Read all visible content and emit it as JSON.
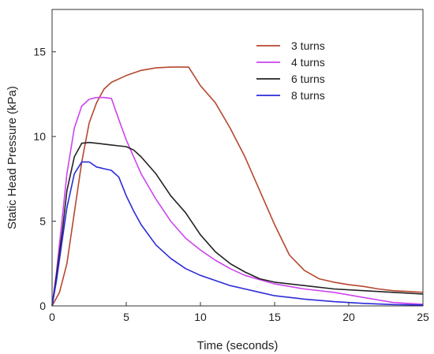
{
  "chart_data": {
    "type": "line",
    "title": "",
    "xlabel": "Time (seconds)",
    "ylabel": "Static Head Pressure (kPa)",
    "xlim": [
      0,
      25
    ],
    "ylim": [
      0,
      17.5
    ],
    "xticks": [
      0,
      5,
      10,
      15,
      20,
      25
    ],
    "yticks": [
      0,
      5,
      10,
      15
    ],
    "grid": false,
    "legend_position": "top-right",
    "series": [
      {
        "name": "3 turns",
        "color": "#b5472f",
        "x": [
          0,
          0.5,
          1.0,
          1.5,
          2.0,
          2.5,
          3.0,
          3.5,
          4.0,
          5.0,
          6.0,
          7.0,
          8.0,
          9.0,
          9.2,
          10.0,
          11.0,
          12.0,
          13.0,
          14.0,
          15.0,
          16.0,
          17.0,
          18.0,
          19.0,
          20.0,
          21.0,
          22.0,
          23.0,
          24.0,
          25.0
        ],
        "y": [
          0,
          0.8,
          2.5,
          5.5,
          8.5,
          10.8,
          12.0,
          12.8,
          13.2,
          13.6,
          13.9,
          14.05,
          14.1,
          14.1,
          14.1,
          13.0,
          12.0,
          10.5,
          8.8,
          6.8,
          4.8,
          3.0,
          2.1,
          1.6,
          1.4,
          1.25,
          1.15,
          1.0,
          0.9,
          0.85,
          0.8
        ]
      },
      {
        "name": "4 turns",
        "color": "#cc44ee",
        "x": [
          0,
          0.3,
          0.6,
          1.0,
          1.5,
          2.0,
          2.5,
          3.0,
          3.5,
          4.0,
          4.5,
          5.0,
          5.5,
          6.0,
          7.0,
          8.0,
          9.0,
          10.0,
          11.0,
          12.0,
          13.0,
          15.0,
          17.0,
          19.0,
          21.0,
          23.0,
          25.0
        ],
        "y": [
          0,
          2.0,
          4.5,
          7.8,
          10.5,
          11.8,
          12.2,
          12.3,
          12.3,
          12.25,
          11.0,
          9.8,
          8.8,
          7.8,
          6.3,
          5.0,
          4.0,
          3.3,
          2.7,
          2.2,
          1.8,
          1.3,
          1.0,
          0.8,
          0.5,
          0.2,
          0.1
        ]
      },
      {
        "name": "6 turns",
        "color": "#222222",
        "x": [
          0,
          0.3,
          0.7,
          1.0,
          1.5,
          2.0,
          2.5,
          3.0,
          3.5,
          4.0,
          4.5,
          5.0,
          5.5,
          6.0,
          7.0,
          8.0,
          9.0,
          10.0,
          11.0,
          12.0,
          13.0,
          14.0,
          15.0,
          17.0,
          19.0,
          21.0,
          23.0,
          25.0
        ],
        "y": [
          0,
          1.8,
          4.5,
          6.8,
          8.8,
          9.6,
          9.65,
          9.6,
          9.55,
          9.5,
          9.45,
          9.4,
          9.2,
          8.8,
          7.8,
          6.5,
          5.5,
          4.2,
          3.2,
          2.5,
          2.0,
          1.6,
          1.4,
          1.2,
          1.0,
          0.9,
          0.8,
          0.7
        ]
      },
      {
        "name": "8 turns",
        "color": "#2b2bd8",
        "x": [
          0,
          0.3,
          0.7,
          1.0,
          1.5,
          2.0,
          2.5,
          3.0,
          3.5,
          4.0,
          4.5,
          5.0,
          5.5,
          6.0,
          7.0,
          8.0,
          9.0,
          10.0,
          11.0,
          12.0,
          13.0,
          14.0,
          15.0,
          17.0,
          19.0,
          21.0,
          23.0,
          25.0
        ],
        "y": [
          0,
          1.5,
          4.0,
          5.8,
          7.8,
          8.5,
          8.5,
          8.2,
          8.1,
          8.0,
          7.6,
          6.5,
          5.6,
          4.8,
          3.6,
          2.8,
          2.2,
          1.8,
          1.5,
          1.2,
          1.0,
          0.8,
          0.6,
          0.4,
          0.25,
          0.15,
          0.08,
          0.05
        ]
      }
    ]
  }
}
